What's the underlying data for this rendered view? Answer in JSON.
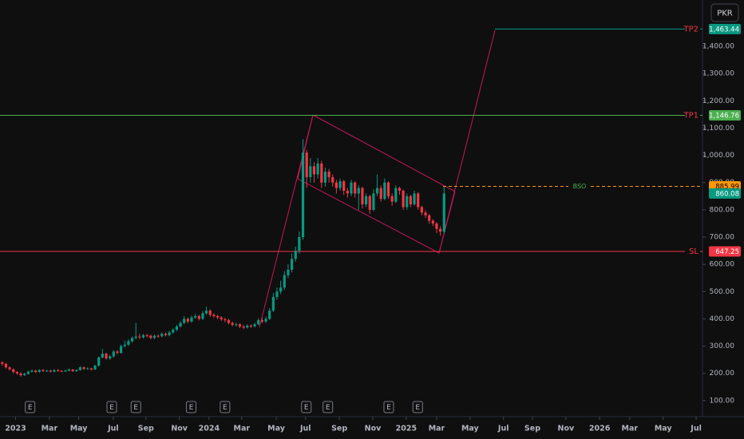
{
  "chart_data": {
    "type": "candlestick",
    "currency": "PKR",
    "up_color": "#089981",
    "down_color": "#f23645",
    "grid": false,
    "xlim": [
      -0.6,
      188.6
    ],
    "ylim": [
      41,
      1570
    ],
    "yticks": [
      {
        "value": 100,
        "label": "100.00"
      },
      {
        "value": 200,
        "label": "200.00"
      },
      {
        "value": 300,
        "label": "300.00"
      },
      {
        "value": 400,
        "label": "400.00"
      },
      {
        "value": 500,
        "label": "500.00"
      },
      {
        "value": 600,
        "label": "600.00"
      },
      {
        "value": 700,
        "label": "700.00"
      },
      {
        "value": 800,
        "label": "800.00"
      },
      {
        "value": 900,
        "label": "900.00"
      },
      {
        "value": 1000,
        "label": "1,000.00"
      },
      {
        "value": 1100,
        "label": "1,100.00"
      },
      {
        "value": 1200,
        "label": "1,200.00"
      },
      {
        "value": 1300,
        "label": "1,300.00"
      },
      {
        "value": 1400,
        "label": "1,400.00"
      }
    ],
    "xticks": [
      {
        "value": 3.6,
        "label": "2023"
      },
      {
        "value": 12.7,
        "label": "Mar"
      },
      {
        "value": 20.6,
        "label": "May"
      },
      {
        "value": 29.9,
        "label": "Jul"
      },
      {
        "value": 38.7,
        "label": "Sep"
      },
      {
        "value": 47.7,
        "label": "Nov"
      },
      {
        "value": 55.7,
        "label": "2024"
      },
      {
        "value": 64.5,
        "label": "Mar"
      },
      {
        "value": 73.8,
        "label": "May"
      },
      {
        "value": 81.7,
        "label": "Jul"
      },
      {
        "value": 90.8,
        "label": "Sep"
      },
      {
        "value": 99.8,
        "label": "Nov"
      },
      {
        "value": 108.8,
        "label": "2025"
      },
      {
        "value": 117,
        "label": "Mar"
      },
      {
        "value": 126,
        "label": "May"
      },
      {
        "value": 135,
        "label": "Jul"
      },
      {
        "value": 142.8,
        "label": "Sep"
      },
      {
        "value": 151.8,
        "label": "Nov"
      },
      {
        "value": 160.9,
        "label": "2026"
      },
      {
        "value": 169,
        "label": "Mar"
      },
      {
        "value": 178,
        "label": "May"
      },
      {
        "value": 186.9,
        "label": "Jul"
      }
    ],
    "ohlc": [
      [
        240,
        245,
        228,
        235
      ],
      [
        235,
        238,
        218,
        222
      ],
      [
        222,
        225,
        210,
        215
      ],
      [
        215,
        218,
        200,
        205
      ],
      [
        205,
        208,
        195,
        200
      ],
      [
        200,
        203,
        188,
        193
      ],
      [
        193,
        202,
        190,
        198
      ],
      [
        198,
        210,
        195,
        206
      ],
      [
        206,
        214,
        203,
        210
      ],
      [
        210,
        213,
        201,
        205
      ],
      [
        205,
        215,
        202,
        212
      ],
      [
        212,
        215,
        205,
        208
      ],
      [
        208,
        213,
        205,
        210
      ],
      [
        210,
        213,
        203,
        206
      ],
      [
        206,
        215,
        204,
        212
      ],
      [
        212,
        215,
        206,
        209
      ],
      [
        209,
        212,
        204,
        207
      ],
      [
        207,
        213,
        205,
        210
      ],
      [
        210,
        218,
        207,
        214
      ],
      [
        214,
        216,
        205,
        208
      ],
      [
        208,
        215,
        205,
        212
      ],
      [
        212,
        226,
        210,
        222
      ],
      [
        222,
        225,
        212,
        216
      ],
      [
        216,
        222,
        213,
        218
      ],
      [
        218,
        220,
        210,
        214
      ],
      [
        214,
        232,
        212,
        228
      ],
      [
        228,
        262,
        225,
        258
      ],
      [
        258,
        290,
        255,
        272
      ],
      [
        272,
        276,
        250,
        255
      ],
      [
        255,
        268,
        250,
        262
      ],
      [
        262,
        285,
        258,
        280
      ],
      [
        280,
        285,
        270,
        275
      ],
      [
        275,
        305,
        272,
        300
      ],
      [
        300,
        320,
        295,
        305
      ],
      [
        305,
        325,
        300,
        318
      ],
      [
        318,
        335,
        312,
        330
      ],
      [
        330,
        385,
        325,
        335
      ],
      [
        335,
        345,
        325,
        332
      ],
      [
        332,
        345,
        328,
        340
      ],
      [
        340,
        345,
        332,
        338
      ],
      [
        338,
        342,
        325,
        330
      ],
      [
        330,
        342,
        326,
        338
      ],
      [
        338,
        342,
        330,
        336
      ],
      [
        336,
        350,
        332,
        345
      ],
      [
        345,
        350,
        335,
        340
      ],
      [
        340,
        356,
        336,
        350
      ],
      [
        350,
        365,
        345,
        360
      ],
      [
        360,
        378,
        355,
        372
      ],
      [
        372,
        392,
        368,
        385
      ],
      [
        385,
        410,
        380,
        400
      ],
      [
        400,
        405,
        384,
        390
      ],
      [
        390,
        412,
        386,
        405
      ],
      [
        405,
        418,
        400,
        410
      ],
      [
        410,
        415,
        394,
        400
      ],
      [
        400,
        428,
        396,
        420
      ],
      [
        420,
        445,
        415,
        430
      ],
      [
        430,
        435,
        408,
        415
      ],
      [
        415,
        420,
        404,
        410
      ],
      [
        410,
        415,
        398,
        405
      ],
      [
        405,
        410,
        392,
        398
      ],
      [
        398,
        404,
        388,
        395
      ],
      [
        395,
        400,
        380,
        385
      ],
      [
        385,
        390,
        372,
        378
      ],
      [
        378,
        386,
        372,
        380
      ],
      [
        380,
        384,
        366,
        372
      ],
      [
        372,
        378,
        362,
        368
      ],
      [
        368,
        380,
        364,
        375
      ],
      [
        375,
        380,
        366,
        372
      ],
      [
        372,
        386,
        368,
        380
      ],
      [
        380,
        402,
        376,
        395
      ],
      [
        395,
        404,
        384,
        390
      ],
      [
        390,
        408,
        385,
        400
      ],
      [
        400,
        440,
        396,
        430
      ],
      [
        430,
        495,
        425,
        480
      ],
      [
        480,
        515,
        470,
        500
      ],
      [
        500,
        540,
        490,
        515
      ],
      [
        515,
        575,
        505,
        560
      ],
      [
        560,
        600,
        550,
        580
      ],
      [
        580,
        640,
        570,
        620
      ],
      [
        620,
        665,
        610,
        650
      ],
      [
        650,
        720,
        640,
        700
      ],
      [
        700,
        1060,
        690,
        1010
      ],
      [
        1010,
        1020,
        880,
        920
      ],
      [
        920,
        990,
        900,
        960
      ],
      [
        960,
        975,
        900,
        930
      ],
      [
        930,
        990,
        915,
        970
      ],
      [
        970,
        980,
        880,
        900
      ],
      [
        900,
        955,
        885,
        940
      ],
      [
        940,
        950,
        900,
        920
      ],
      [
        920,
        930,
        885,
        900
      ],
      [
        900,
        910,
        860,
        880
      ],
      [
        880,
        915,
        870,
        905
      ],
      [
        905,
        910,
        855,
        870
      ],
      [
        870,
        880,
        845,
        860
      ],
      [
        860,
        910,
        850,
        900
      ],
      [
        900,
        905,
        845,
        860
      ],
      [
        860,
        890,
        800,
        880
      ],
      [
        880,
        885,
        805,
        820
      ],
      [
        820,
        860,
        810,
        850
      ],
      [
        850,
        855,
        785,
        800
      ],
      [
        800,
        875,
        795,
        860
      ],
      [
        860,
        930,
        850,
        880
      ],
      [
        880,
        890,
        830,
        840
      ],
      [
        840,
        915,
        835,
        900
      ],
      [
        900,
        905,
        840,
        850
      ],
      [
        850,
        860,
        815,
        830
      ],
      [
        830,
        890,
        825,
        880
      ],
      [
        880,
        885,
        855,
        870
      ],
      [
        870,
        875,
        800,
        810
      ],
      [
        810,
        860,
        800,
        850
      ],
      [
        850,
        855,
        810,
        820
      ],
      [
        820,
        870,
        815,
        860
      ],
      [
        860,
        865,
        800,
        810
      ],
      [
        810,
        815,
        780,
        790
      ],
      [
        790,
        798,
        770,
        780
      ],
      [
        780,
        785,
        750,
        760
      ],
      [
        760,
        765,
        740,
        750
      ],
      [
        750,
        755,
        715,
        730
      ],
      [
        730,
        740,
        705,
        720
      ],
      [
        720,
        886,
        712,
        860.08
      ]
    ],
    "last_price": 860.08,
    "levels": [
      {
        "name": "TP2",
        "value": 1463.44,
        "value_label": "1,463.44",
        "color": "#089981",
        "text_color": "#f23645",
        "dashed": false
      },
      {
        "name": "TP1",
        "value": 1146.76,
        "value_label": "1,146.76",
        "color": "#4caf50",
        "text_color": "#f23645",
        "dashed": false
      },
      {
        "name": "SL",
        "value": 647.25,
        "value_label": "647.25",
        "color": "#f23645",
        "text_color": "#f23645",
        "dashed": false
      },
      {
        "name": "BSO",
        "value": 885.99,
        "value_label": "885.99",
        "color": "#ff9800",
        "text_color": "#4caf50",
        "dashed": true
      }
    ],
    "events": {
      "label": "E",
      "x": [
        7.5,
        29.5,
        36,
        50.9,
        60,
        81.9,
        87.7,
        104.1,
        111.9
      ]
    }
  }
}
